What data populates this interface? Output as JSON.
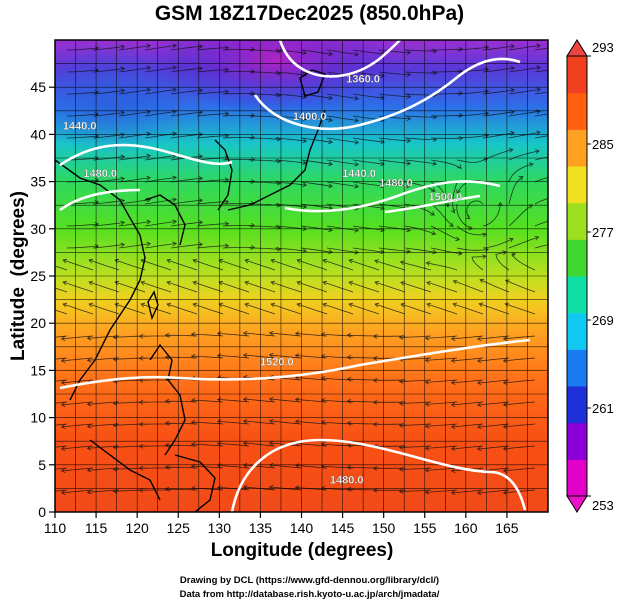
{
  "title": "GSM 18Z17Dec2025 (850.0hPa)",
  "xlabel": "Longitude (degrees)",
  "ylabel": "Latitude  (degrees)",
  "credits": [
    "Drawing by DCL (https://www.gfd-dennou.org/library/dcl/)",
    "Data from http://database.rish.kyoto-u.ac.jp/arch/jmadata/"
  ],
  "map": {
    "lon_range": [
      110,
      170
    ],
    "lat_range": [
      0,
      50
    ],
    "x_ticks": [
      "110",
      "115",
      "120",
      "125",
      "130",
      "135",
      "140",
      "145",
      "150",
      "155",
      "160",
      "165"
    ],
    "y_ticks": [
      "0",
      "5",
      "10",
      "15",
      "20",
      "25",
      "30",
      "35",
      "40",
      "45"
    ],
    "grid": true,
    "temperature_field": [
      {
        "lat": 50,
        "value": 256
      },
      {
        "lat": 46,
        "value": 259
      },
      {
        "lat": 42,
        "value": 266
      },
      {
        "lat": 37,
        "value": 275
      },
      {
        "lat": 30,
        "value": 279
      },
      {
        "lat": 25,
        "value": 282
      },
      {
        "lat": 20,
        "value": 285
      },
      {
        "lat": 15,
        "value": 287
      },
      {
        "lat": 8,
        "value": 289
      },
      {
        "lat": 0,
        "value": 290
      }
    ],
    "geopotential_contours": [
      {
        "label": "1360.0",
        "label_lon": 147.5,
        "label_lat": 45.5
      },
      {
        "label": "1400.0",
        "label_lon": 141.0,
        "label_lat": 41.5
      },
      {
        "label": "1440.0",
        "label_lon": 113.0,
        "label_lat": 40.5
      },
      {
        "label": "1480.0",
        "label_lon": 115.5,
        "label_lat": 35.5
      },
      {
        "label": "1440.0",
        "label_lon": 147.0,
        "label_lat": 35.5
      },
      {
        "label": "1480.0",
        "label_lon": 151.5,
        "label_lat": 34.5
      },
      {
        "label": "1500.0",
        "label_lon": 157.5,
        "label_lat": 33.0
      },
      {
        "label": "1520.0",
        "label_lon": 137.0,
        "label_lat": 15.5
      },
      {
        "label": "1480.0",
        "label_lon": 145.5,
        "label_lat": 3.0
      }
    ],
    "cyclonic_circulation": {
      "lon": 161.5,
      "lat": 32
    }
  },
  "colorbar": {
    "min": 253,
    "max": 293,
    "tick_labels": [
      "293",
      "285",
      "277",
      "269",
      "261",
      "253"
    ],
    "colors": [
      "#e000c8",
      "#8a00d8",
      "#2030d8",
      "#1a7cf0",
      "#10c8f0",
      "#10e0a8",
      "#40d830",
      "#9de020",
      "#f0e020",
      "#ffa020",
      "#ff6010",
      "#f04020"
    ]
  }
}
